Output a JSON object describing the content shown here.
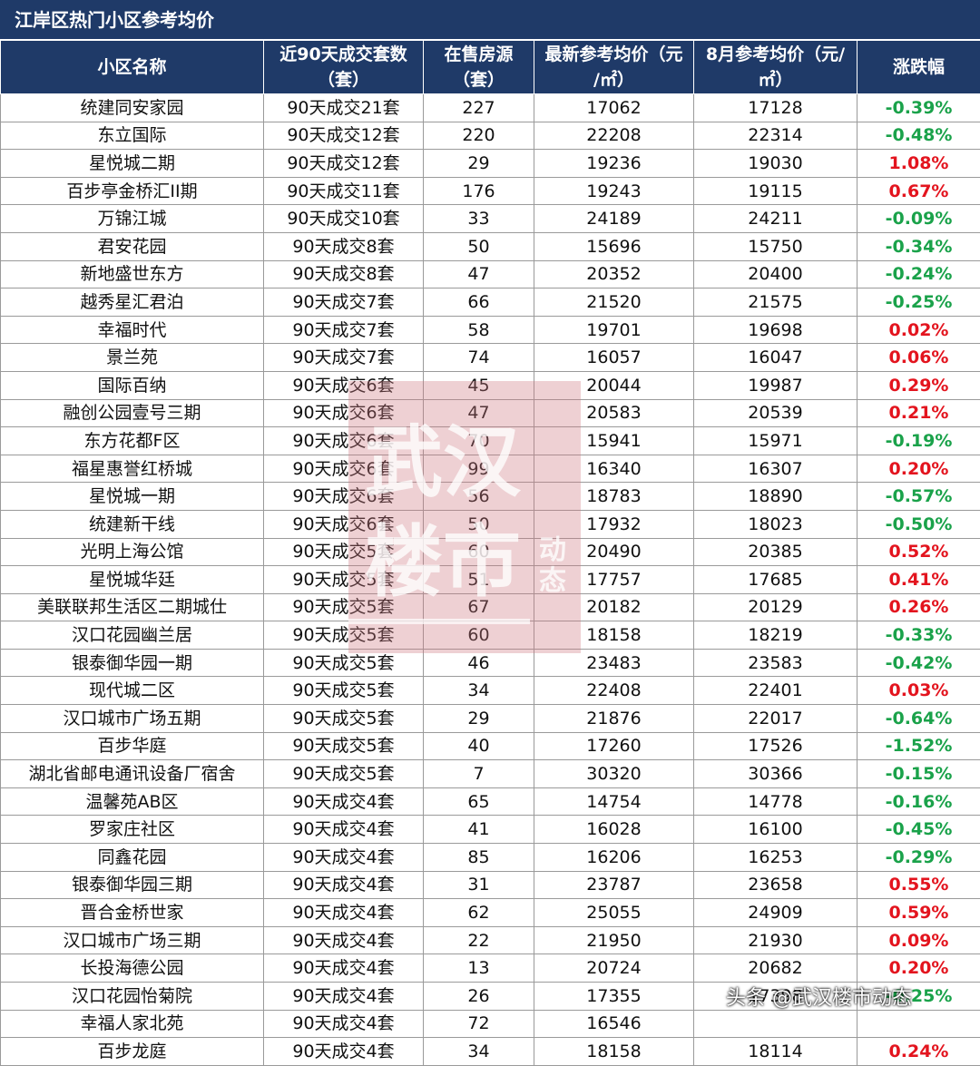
{
  "title": "江岸区热门小区参考均价",
  "headers": [
    {
      "line1": "小区名称",
      "line2": ""
    },
    {
      "line1": "近90天成交套数",
      "line2": "（套）"
    },
    {
      "line1": "在售房源",
      "line2": "（套）"
    },
    {
      "line1": "最新参考均价（元",
      "line2": "/㎡）"
    },
    {
      "line1": "8月参考均价（元/",
      "line2": "㎡）"
    },
    {
      "line1": "涨跌幅",
      "line2": ""
    }
  ],
  "rows": [
    [
      "统建同安家园",
      "90天成交21套",
      "227",
      "17062",
      "17128",
      "-0.39%"
    ],
    [
      "东立国际",
      "90天成交12套",
      "220",
      "22208",
      "22314",
      "-0.48%"
    ],
    [
      "星悦城二期",
      "90天成交12套",
      "29",
      "19236",
      "19030",
      "1.08%"
    ],
    [
      "百步亭金桥汇II期",
      "90天成交11套",
      "176",
      "19243",
      "19115",
      "0.67%"
    ],
    [
      "万锦江城",
      "90天成交10套",
      "33",
      "24189",
      "24211",
      "-0.09%"
    ],
    [
      "君安花园",
      "90天成交8套",
      "50",
      "15696",
      "15750",
      "-0.34%"
    ],
    [
      "新地盛世东方",
      "90天成交8套",
      "47",
      "20352",
      "20400",
      "-0.24%"
    ],
    [
      "越秀星汇君泊",
      "90天成交7套",
      "66",
      "21520",
      "21575",
      "-0.25%"
    ],
    [
      "幸福时代",
      "90天成交7套",
      "58",
      "19701",
      "19698",
      "0.02%"
    ],
    [
      "景兰苑",
      "90天成交7套",
      "74",
      "16057",
      "16047",
      "0.06%"
    ],
    [
      "国际百纳",
      "90天成交6套",
      "45",
      "20044",
      "19987",
      "0.29%"
    ],
    [
      "融创公园壹号三期",
      "90天成交6套",
      "47",
      "20583",
      "20539",
      "0.21%"
    ],
    [
      "东方花都F区",
      "90天成交6套",
      "70",
      "15941",
      "15971",
      "-0.19%"
    ],
    [
      "福星惠誉红桥城",
      "90天成交6套",
      "99",
      "16340",
      "16307",
      "0.20%"
    ],
    [
      "星悦城一期",
      "90天成交6套",
      "56",
      "18783",
      "18890",
      "-0.57%"
    ],
    [
      "统建新干线",
      "90天成交6套",
      "50",
      "17932",
      "18023",
      "-0.50%"
    ],
    [
      "光明上海公馆",
      "90天成交5套",
      "60",
      "20490",
      "20385",
      "0.52%"
    ],
    [
      "星悦城华廷",
      "90天成交5套",
      "51",
      "17757",
      "17685",
      "0.41%"
    ],
    [
      "美联联邦生活区二期城仕",
      "90天成交5套",
      "67",
      "20182",
      "20129",
      "0.26%"
    ],
    [
      "汉口花园幽兰居",
      "90天成交5套",
      "60",
      "18158",
      "18219",
      "-0.33%"
    ],
    [
      "银泰御华园一期",
      "90天成交5套",
      "46",
      "23483",
      "23583",
      "-0.42%"
    ],
    [
      "现代城二区",
      "90天成交5套",
      "34",
      "22408",
      "22401",
      "0.03%"
    ],
    [
      "汉口城市广场五期",
      "90天成交5套",
      "29",
      "21876",
      "22017",
      "-0.64%"
    ],
    [
      "百步华庭",
      "90天成交5套",
      "40",
      "17260",
      "17526",
      "-1.52%"
    ],
    [
      "湖北省邮电通讯设备厂宿舍",
      "90天成交5套",
      "7",
      "30320",
      "30366",
      "-0.15%"
    ],
    [
      "温馨苑AB区",
      "90天成交4套",
      "65",
      "14754",
      "14778",
      "-0.16%"
    ],
    [
      "罗家庄社区",
      "90天成交4套",
      "41",
      "16028",
      "16100",
      "-0.45%"
    ],
    [
      "同鑫花园",
      "90天成交4套",
      "85",
      "16206",
      "16253",
      "-0.29%"
    ],
    [
      "银泰御华园三期",
      "90天成交4套",
      "31",
      "23787",
      "23658",
      "0.55%"
    ],
    [
      "晋合金桥世家",
      "90天成交4套",
      "62",
      "25055",
      "24909",
      "0.59%"
    ],
    [
      "汉口城市广场三期",
      "90天成交4套",
      "22",
      "21950",
      "21930",
      "0.09%"
    ],
    [
      "长投海德公园",
      "90天成交4套",
      "13",
      "20724",
      "20682",
      "0.20%"
    ],
    [
      "汉口花园怡菊院",
      "90天成交4套",
      "26",
      "17355",
      "17398",
      "-0.25%"
    ],
    [
      "幸福人家北苑",
      "90天成交4套",
      "72",
      "16546",
      "",
      ""
    ],
    [
      "百步龙庭",
      "90天成交4套",
      "34",
      "18158",
      "18114",
      "0.24%"
    ]
  ],
  "colors": {
    "header_bg": "#1f3a68",
    "rise": "#e3141e",
    "fall": "#1aa24a"
  },
  "watermark": {
    "line1": "武汉",
    "line2": "楼市",
    "side": "动态"
  },
  "credit": "头条 @武汉楼市动态"
}
